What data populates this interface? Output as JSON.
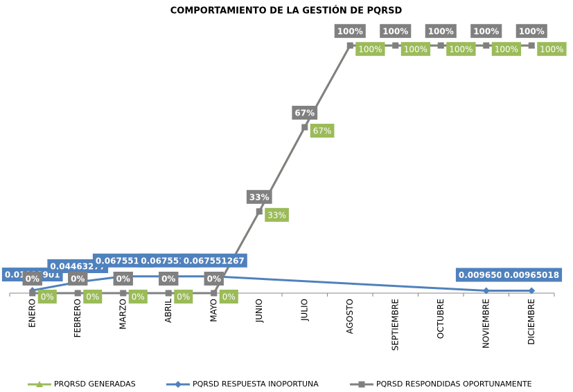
{
  "chart_data": {
    "type": "line",
    "title": "COMPORTAMIENTO DE LA GESTIÓN DE PQRSD",
    "categories": [
      "ENERO",
      "FEBRERO",
      "MARZO",
      "ABRIL",
      "MAYO",
      "JUNIO",
      "JULIO",
      "AGOSTO",
      "SEPTIEMBRE",
      "OCTUBRE",
      "NOVIEMBRE",
      "DICIEMBRE"
    ],
    "ylim": [
      0,
      1.1
    ],
    "series": [
      {
        "name": "PRQRSD GENERADAS",
        "color": "#9bbb59",
        "marker": "triangle",
        "values": [
          0,
          0,
          0,
          0,
          0,
          0.33,
          0.67,
          1,
          1,
          1,
          1,
          1
        ],
        "value_labels": [
          "0%",
          "0%",
          "0%",
          "0%",
          "0%",
          "33%",
          "67%",
          "100%",
          "100%",
          "100%",
          "100%",
          "100%"
        ]
      },
      {
        "name": "PQRSD RESPUESTA INOPORTUNA",
        "color": "#4f81bd",
        "marker": "diamond",
        "values": [
          0.01098901,
          0.04463277,
          0.06755127,
          0.06755127,
          0.067551267,
          null,
          null,
          null,
          null,
          null,
          0.00965018,
          0.00965018
        ],
        "value_labels": [
          "0.01098901",
          "0.04463277",
          "0.06755127",
          "0.06755127",
          "0.067551267",
          null,
          null,
          null,
          null,
          null,
          "0.00965018",
          "0.00965018"
        ]
      },
      {
        "name": "PQRSD RESPONDIDAS OPORTUNAMENTE",
        "color": "#808080",
        "marker": "square",
        "values": [
          0,
          0,
          0,
          0,
          0,
          0.33,
          0.67,
          1,
          1,
          1,
          1,
          1
        ],
        "value_labels": [
          "0%",
          "0%",
          "0%",
          "0%",
          "0%",
          "33%",
          "67%",
          "100%",
          "100%",
          "100%",
          "100%",
          "100%"
        ]
      }
    ]
  }
}
